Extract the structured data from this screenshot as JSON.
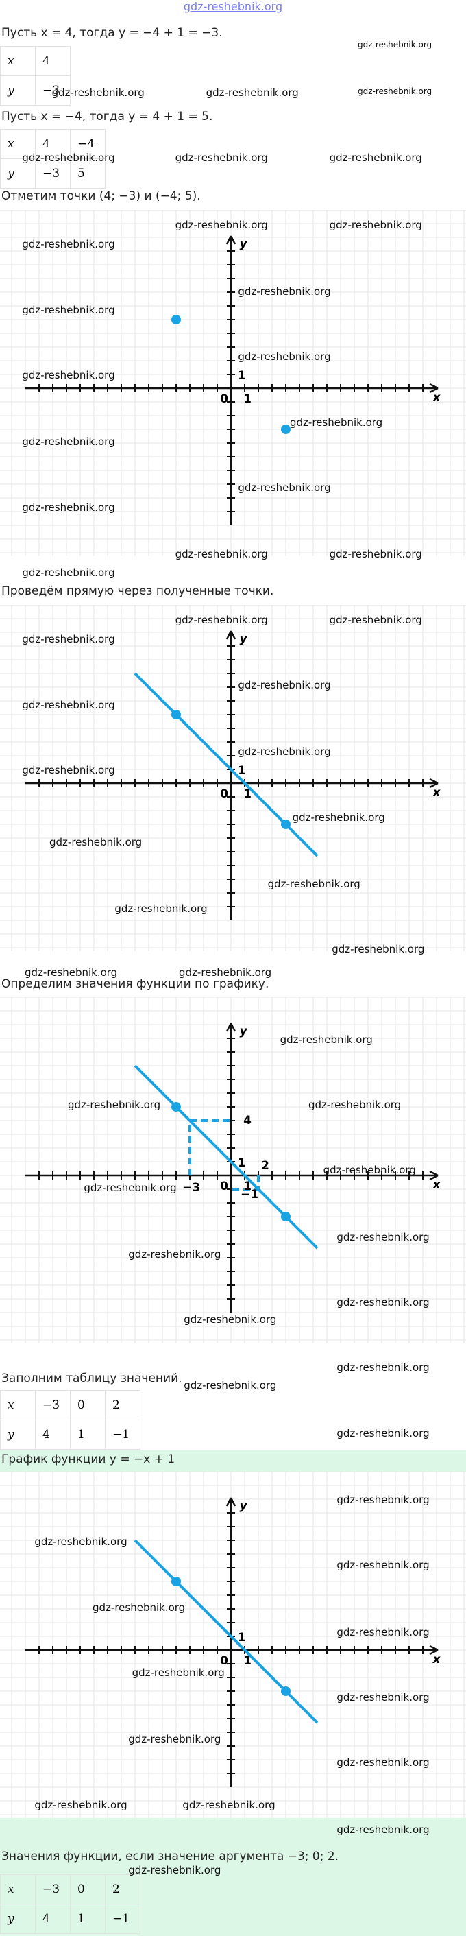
{
  "header": "gdz-reshebnik.org",
  "watermark": "gdz-reshebnik.org",
  "step1": {
    "text": "Пусть x = 4, тогда y = −4 + 1 = −3.",
    "table": [
      [
        "x",
        "4"
      ],
      [
        "y",
        "−3"
      ]
    ]
  },
  "step2": {
    "text": "Пусть x = −4, тогда y = 4 + 1 = 5.",
    "table": [
      [
        "x",
        "4",
        "−4"
      ],
      [
        "y",
        "−3",
        "5"
      ]
    ]
  },
  "step3": {
    "text": "Отметим точки (4; −3) и (−4; 5)."
  },
  "step4": {
    "text": "Проведём прямую через полученные точки."
  },
  "step5": {
    "text": "Определим значения функции по графику."
  },
  "step6": {
    "text": "Заполним таблицу значений.",
    "table": [
      [
        "x",
        "−3",
        "0",
        "2"
      ],
      [
        "y",
        "4",
        "1",
        "−1"
      ]
    ]
  },
  "step7": {
    "text": "График функции y = −x + 1"
  },
  "step8": {
    "text": "Значения функции, если значение аргумента −3; 0; 2.",
    "table": [
      [
        "x",
        "−3",
        "0",
        "2"
      ],
      [
        "y",
        "4",
        "1",
        "−1"
      ]
    ]
  },
  "graphs": [
    {
      "points": [
        [
          -4,
          5
        ],
        [
          4,
          -3
        ]
      ],
      "line": false,
      "labels": [
        "x",
        "y",
        "0",
        "1",
        "1"
      ]
    },
    {
      "points": [
        [
          -4,
          5
        ],
        [
          4,
          -3
        ]
      ],
      "line": true,
      "labels": [
        "x",
        "y",
        "0",
        "1",
        "1"
      ]
    },
    {
      "points": [
        [
          -4,
          5
        ],
        [
          4,
          -3
        ]
      ],
      "line": true,
      "guides": [
        [
          -3,
          4
        ],
        [
          2,
          -1
        ]
      ],
      "labels": [
        "x",
        "y",
        "0",
        "1",
        "1",
        "2",
        "4",
        "−3",
        "−1"
      ]
    },
    {
      "points": [
        [
          -4,
          5
        ],
        [
          4,
          -3
        ]
      ],
      "line": true,
      "labels": [
        "x",
        "y",
        "0",
        "1",
        "1"
      ]
    }
  ]
}
